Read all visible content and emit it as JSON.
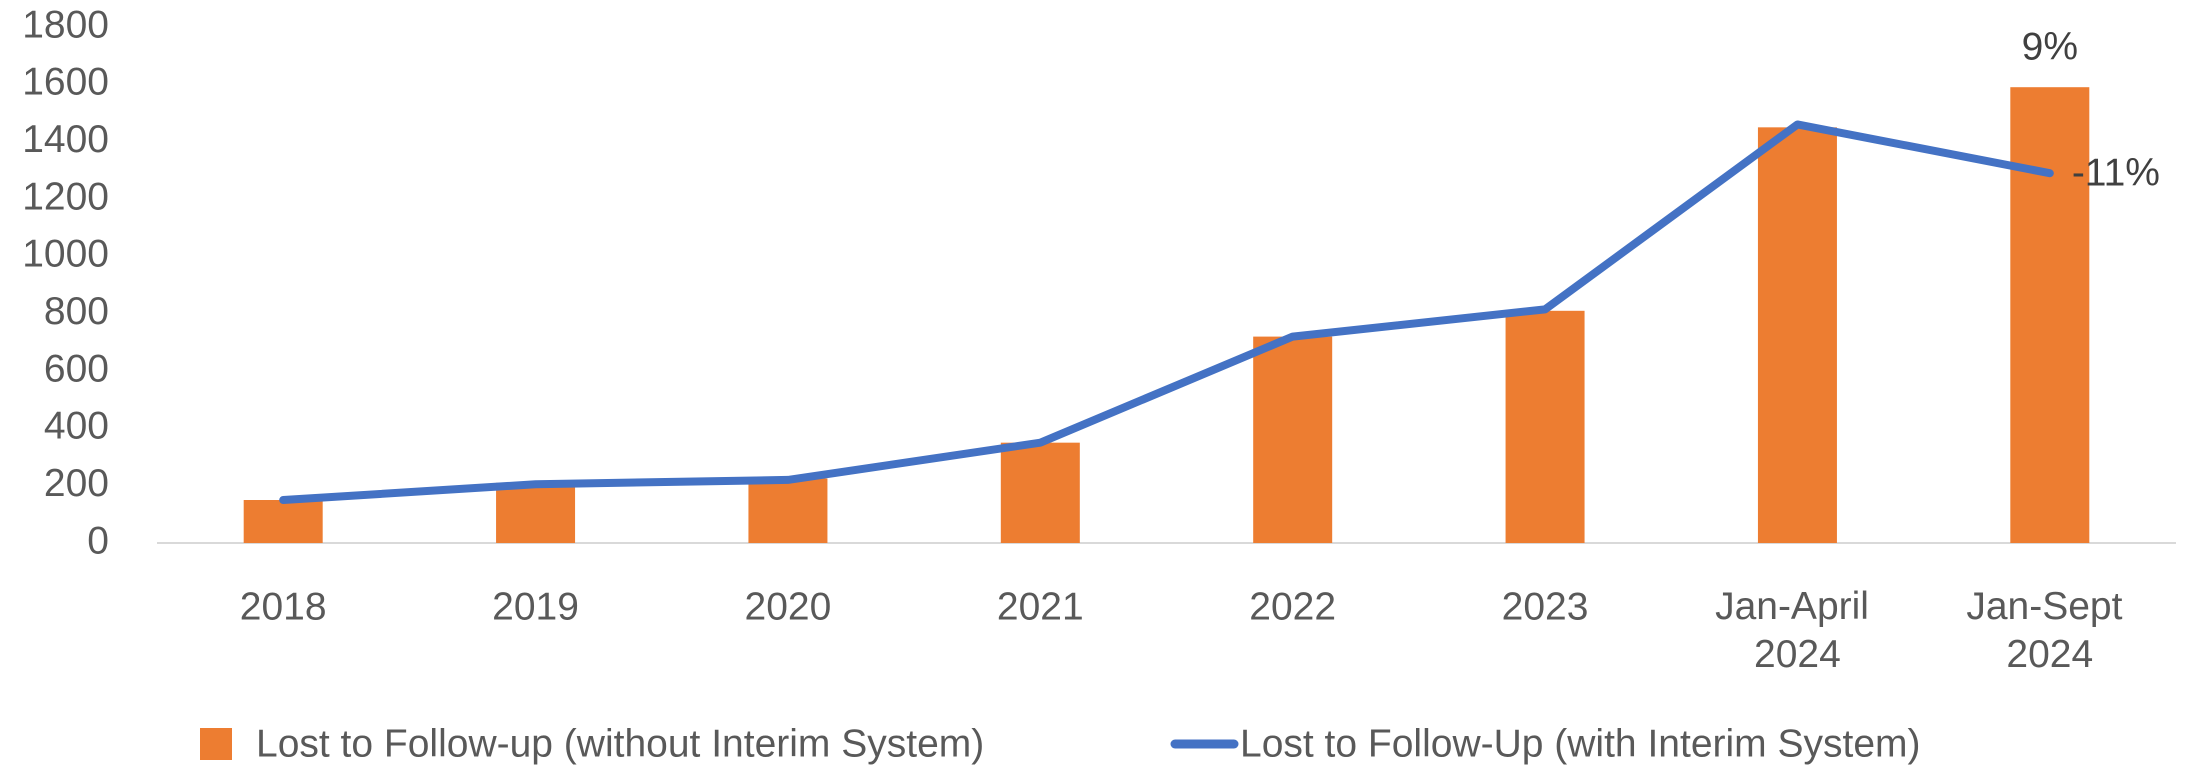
{
  "chart_data": {
    "type": "bar-line",
    "categories": [
      "2018",
      "2019",
      "2020",
      "2021",
      "2022",
      "2023",
      "Jan-April 2024",
      "Jan-Sept 2024"
    ],
    "series": [
      {
        "name": "Lost to Follow-up (without Interim System)",
        "type": "bar",
        "color": "#ED7D31",
        "values": [
          150,
          210,
          225,
          350,
          720,
          810,
          1450,
          1590
        ]
      },
      {
        "name": "Lost to Follow-Up (with Interim System)",
        "type": "line",
        "color": "#4472C4",
        "values": [
          150,
          205,
          220,
          350,
          720,
          815,
          1460,
          1290
        ]
      }
    ],
    "annotations": [
      "9%",
      "-11%"
    ],
    "ylim": [
      0,
      1800
    ],
    "yticks": [
      0,
      200,
      400,
      600,
      800,
      1000,
      1200,
      1400,
      1600,
      1800
    ],
    "grid": false,
    "legend": "bottom"
  }
}
